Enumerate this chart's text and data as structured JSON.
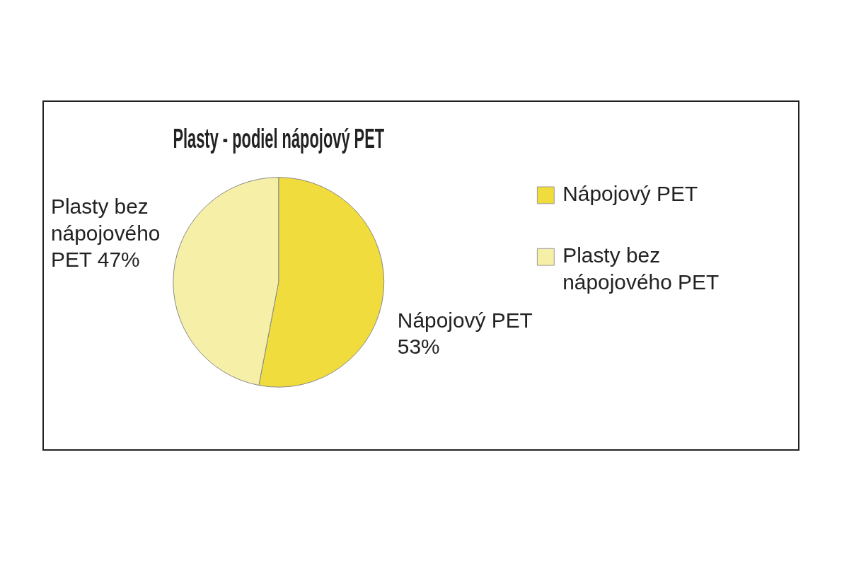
{
  "chart_data": {
    "type": "pie",
    "title": "Plasty - podiel nápojový PET",
    "categories": [
      "Nápojový PET",
      "Plasty bez nápojového PET"
    ],
    "values": [
      53,
      47
    ],
    "colors": [
      "#f0dc3c",
      "#f5efa8"
    ],
    "value_labels": [
      "53%",
      "47%"
    ],
    "legend": "right"
  }
}
